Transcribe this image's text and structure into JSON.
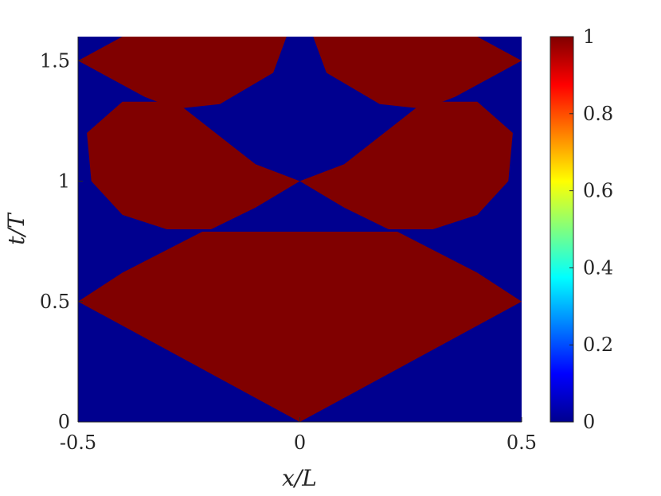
{
  "chart_data": {
    "type": "heatmap",
    "title": "",
    "xlabel": "x/L",
    "ylabel": "t/T",
    "xlim": [
      -0.5,
      0.5
    ],
    "ylim": [
      0,
      1.6
    ],
    "x_ticks": [
      "-0.5",
      "0",
      "0.5"
    ],
    "y_ticks": [
      "0",
      "0.5",
      "1",
      "1.5"
    ],
    "colorbar": {
      "colormap": "jet",
      "limits": [
        0,
        1
      ],
      "ticks": [
        "0",
        "0.2",
        "0.4",
        "0.6",
        "0.8",
        "1"
      ]
    },
    "value_levels": [
      0,
      1
    ],
    "background_value": 0,
    "colors": {
      "low": "#00008f",
      "high": "#800000"
    },
    "regions_value_1": [
      {
        "name": "lower-diamond",
        "points": [
          [
            0,
            0
          ],
          [
            0.5,
            0.5
          ],
          [
            0.4,
            0.62
          ],
          [
            0.22,
            0.79
          ],
          [
            0,
            0.79
          ],
          [
            -0.22,
            0.79
          ],
          [
            -0.4,
            0.62
          ],
          [
            -0.5,
            0.5
          ]
        ]
      },
      {
        "name": "left-middle-lobe",
        "points": [
          [
            -0.48,
            1.2
          ],
          [
            -0.4,
            1.33
          ],
          [
            -0.28,
            1.33
          ],
          [
            -0.1,
            1.07
          ],
          [
            0,
            1.0
          ],
          [
            -0.1,
            0.89
          ],
          [
            -0.2,
            0.8
          ],
          [
            -0.3,
            0.8
          ],
          [
            -0.4,
            0.86
          ],
          [
            -0.47,
            1.0
          ]
        ]
      },
      {
        "name": "right-middle-lobe",
        "points": [
          [
            0.48,
            1.2
          ],
          [
            0.4,
            1.33
          ],
          [
            0.28,
            1.33
          ],
          [
            0.1,
            1.07
          ],
          [
            0,
            1.0
          ],
          [
            0.1,
            0.89
          ],
          [
            0.2,
            0.8
          ],
          [
            0.3,
            0.8
          ],
          [
            0.4,
            0.86
          ],
          [
            0.47,
            1.0
          ]
        ]
      },
      {
        "name": "left-upper-lobe",
        "points": [
          [
            -0.5,
            1.5
          ],
          [
            -0.4,
            1.6
          ],
          [
            -0.03,
            1.6
          ],
          [
            -0.06,
            1.45
          ],
          [
            -0.18,
            1.32
          ],
          [
            -0.28,
            1.3
          ],
          [
            -0.35,
            1.35
          ]
        ]
      },
      {
        "name": "right-upper-lobe",
        "points": [
          [
            0.5,
            1.5
          ],
          [
            0.4,
            1.6
          ],
          [
            0.03,
            1.6
          ],
          [
            0.06,
            1.45
          ],
          [
            0.18,
            1.32
          ],
          [
            0.28,
            1.3
          ],
          [
            0.35,
            1.35
          ]
        ]
      }
    ]
  }
}
